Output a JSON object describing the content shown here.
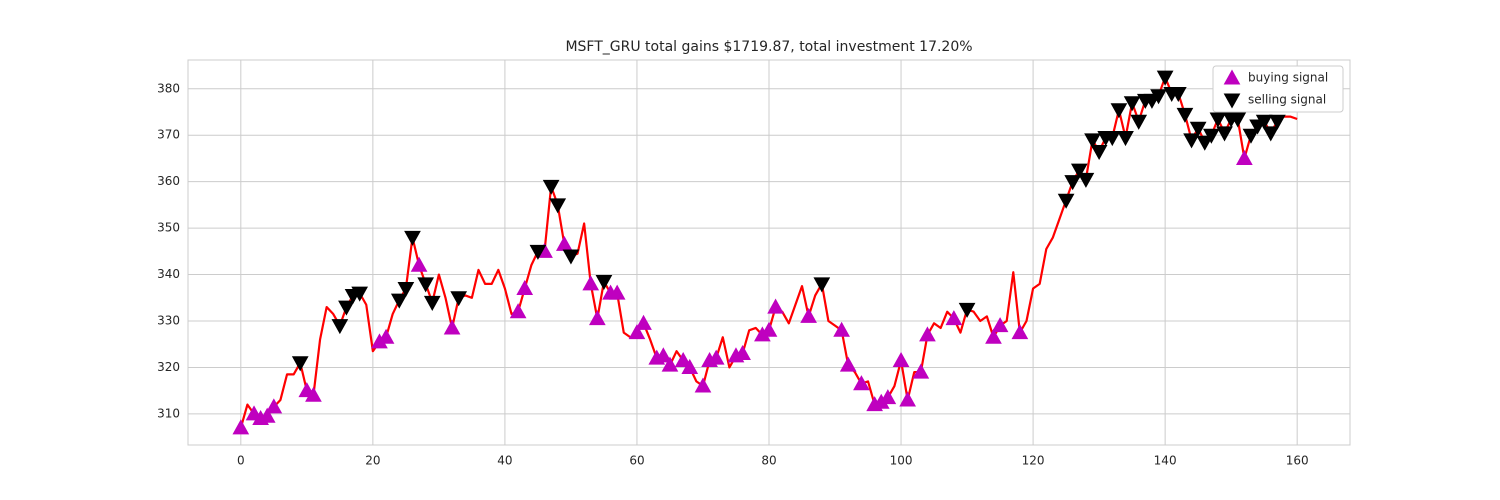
{
  "chart_data": {
    "type": "line",
    "title": "MSFT_GRU total gains $1719.87, total investment 17.20%",
    "x": [
      0,
      1,
      2,
      3,
      4,
      5,
      6,
      7,
      8,
      9,
      10,
      11,
      12,
      13,
      14,
      15,
      16,
      17,
      18,
      19,
      20,
      21,
      22,
      23,
      24,
      25,
      26,
      27,
      28,
      29,
      30,
      31,
      32,
      33,
      34,
      35,
      36,
      37,
      38,
      39,
      40,
      41,
      42,
      43,
      44,
      45,
      46,
      47,
      48,
      49,
      50,
      51,
      52,
      53,
      54,
      55,
      56,
      57,
      58,
      59,
      60,
      61,
      62,
      63,
      64,
      65,
      66,
      67,
      68,
      69,
      70,
      71,
      72,
      73,
      74,
      75,
      76,
      77,
      78,
      79,
      80,
      81,
      82,
      83,
      84,
      85,
      86,
      87,
      88,
      89,
      90,
      91,
      92,
      93,
      94,
      95,
      96,
      97,
      98,
      99,
      100,
      101,
      102,
      103,
      104,
      105,
      106,
      107,
      108,
      109,
      110,
      111,
      112,
      113,
      114,
      115,
      116,
      117,
      118,
      119,
      120,
      121,
      122,
      123,
      124,
      125,
      126,
      127,
      128,
      129,
      130,
      131,
      132,
      133,
      134,
      135,
      136,
      137,
      138,
      139,
      140,
      141,
      142,
      143,
      144,
      145,
      146,
      147,
      148,
      149,
      150,
      151,
      152,
      153,
      154,
      155,
      156,
      157,
      158,
      159,
      160
    ],
    "series": [
      {
        "color": "#ff0000",
        "values": [
          307,
          312,
          310,
          309,
          309.5,
          311.5,
          313,
          318.5,
          318.5,
          321,
          315,
          314,
          326,
          333,
          331.5,
          329,
          333,
          335.5,
          336,
          333.5,
          323.5,
          325.5,
          326.5,
          331.5,
          334.5,
          337,
          348,
          342,
          338,
          334,
          340,
          335,
          328.5,
          335,
          335.5,
          335,
          341,
          338,
          338,
          341,
          337,
          331.5,
          332,
          337,
          342,
          345,
          345,
          359,
          355,
          346.5,
          344,
          344.5,
          351,
          338,
          330.5,
          338.5,
          336,
          336,
          327.5,
          326.5,
          327.5,
          329.5,
          326,
          322,
          322.5,
          320.5,
          323.5,
          321.5,
          320,
          317,
          316,
          321.5,
          322,
          326.5,
          320,
          322.5,
          323,
          328,
          328.5,
          327,
          328,
          333,
          332,
          329.5,
          333.5,
          337.5,
          331,
          335.5,
          338,
          330,
          329,
          328,
          320.5,
          319,
          316.5,
          317,
          312,
          312.5,
          313.5,
          316,
          321.5,
          313,
          319,
          319,
          327,
          329.5,
          328.5,
          332,
          330.5,
          327.5,
          332.5,
          332,
          330,
          331,
          326.5,
          329,
          330,
          340.5,
          327.5,
          330,
          337,
          338,
          345.5,
          348,
          352,
          356,
          360,
          362.5,
          360.5,
          369,
          366.5,
          369.5,
          369.5,
          375.5,
          369.5,
          377,
          373,
          377.5,
          377.5,
          378.5,
          382.5,
          379,
          379,
          374.5,
          369,
          371.5,
          368.5,
          370,
          373.5,
          370.5,
          373.5,
          373.5,
          365,
          370,
          372,
          373,
          370.5,
          373,
          374,
          374,
          373.5
        ]
      },
      {
        "name": "buying signal",
        "color": "#bf00bf",
        "marker": "^",
        "x": [
          0,
          2,
          3,
          4,
          5,
          10,
          11,
          21,
          22,
          27,
          32,
          42,
          43,
          46,
          49,
          53,
          54,
          56,
          57,
          60,
          61,
          63,
          64,
          65,
          67,
          68,
          70,
          71,
          72,
          75,
          76,
          79,
          80,
          81,
          86,
          91,
          92,
          94,
          96,
          97,
          98,
          100,
          101,
          103,
          104,
          108,
          114,
          115,
          118,
          152
        ]
      },
      {
        "name": "selling signal",
        "color": "#000000",
        "marker": "v",
        "x": [
          9,
          15,
          16,
          17,
          18,
          24,
          25,
          26,
          28,
          29,
          33,
          45,
          47,
          48,
          50,
          55,
          88,
          110,
          125,
          126,
          127,
          128,
          129,
          130,
          131,
          132,
          133,
          134,
          135,
          136,
          137,
          138,
          139,
          140,
          141,
          142,
          143,
          144,
          145,
          146,
          147,
          148,
          149,
          150,
          151,
          153,
          154,
          155,
          156,
          157
        ]
      }
    ],
    "xlim": [
      -8,
      168
    ],
    "ylim": [
      303.3,
      386.2
    ],
    "xticks": [
      0,
      20,
      40,
      60,
      80,
      100,
      120,
      140,
      160
    ],
    "yticks": [
      310,
      320,
      330,
      340,
      350,
      360,
      370,
      380
    ],
    "grid": true,
    "legend": "upper right"
  }
}
